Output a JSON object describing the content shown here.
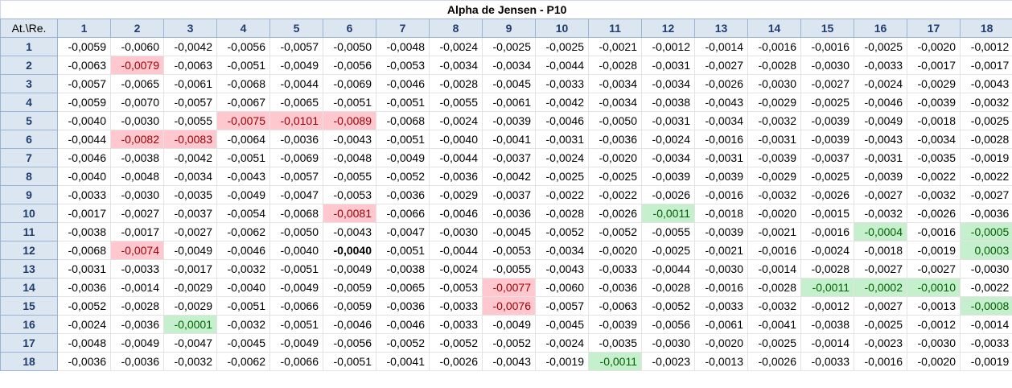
{
  "title": "Alpha de Jensen - P10",
  "corner": "At.\\Re.",
  "columns": [
    "1",
    "2",
    "3",
    "4",
    "5",
    "6",
    "7",
    "8",
    "9",
    "10",
    "11",
    "12",
    "13",
    "14",
    "15",
    "16",
    "17",
    "18"
  ],
  "rows": [
    {
      "label": "1",
      "values": [
        "-0,0059",
        "-0,0060",
        "-0,0042",
        "-0,0056",
        "-0,0057",
        "-0,0050",
        "-0,0048",
        "-0,0024",
        "-0,0025",
        "-0,0025",
        "-0,0021",
        "-0,0012",
        "-0,0014",
        "-0,0016",
        "-0,0016",
        "-0,0025",
        "-0,0020",
        "-0,0012"
      ]
    },
    {
      "label": "2",
      "values": [
        "-0,0063",
        "-0,0079",
        "-0,0063",
        "-0,0051",
        "-0,0049",
        "-0,0056",
        "-0,0053",
        "-0,0034",
        "-0,0034",
        "-0,0044",
        "-0,0028",
        "-0,0031",
        "-0,0027",
        "-0,0028",
        "-0,0030",
        "-0,0033",
        "-0,0017",
        "-0,0017"
      ]
    },
    {
      "label": "3",
      "values": [
        "-0,0057",
        "-0,0065",
        "-0,0061",
        "-0,0068",
        "-0,0044",
        "-0,0069",
        "-0,0046",
        "-0,0028",
        "-0,0045",
        "-0,0033",
        "-0,0034",
        "-0,0034",
        "-0,0026",
        "-0,0030",
        "-0,0027",
        "-0,0024",
        "-0,0029",
        "-0,0043"
      ]
    },
    {
      "label": "4",
      "values": [
        "-0,0059",
        "-0,0070",
        "-0,0057",
        "-0,0067",
        "-0,0065",
        "-0,0051",
        "-0,0051",
        "-0,0055",
        "-0,0061",
        "-0,0042",
        "-0,0034",
        "-0,0038",
        "-0,0043",
        "-0,0029",
        "-0,0025",
        "-0,0046",
        "-0,0039",
        "-0,0032"
      ]
    },
    {
      "label": "5",
      "values": [
        "-0,0040",
        "-0,0030",
        "-0,0055",
        "-0,0075",
        "-0,0101",
        "-0,0089",
        "-0,0068",
        "-0,0024",
        "-0,0039",
        "-0,0046",
        "-0,0050",
        "-0,0031",
        "-0,0034",
        "-0,0032",
        "-0,0039",
        "-0,0049",
        "-0,0018",
        "-0,0025"
      ]
    },
    {
      "label": "6",
      "values": [
        "-0,0044",
        "-0,0082",
        "-0,0083",
        "-0,0064",
        "-0,0036",
        "-0,0043",
        "-0,0051",
        "-0,0040",
        "-0,0041",
        "-0,0031",
        "-0,0036",
        "-0,0024",
        "-0,0016",
        "-0,0031",
        "-0,0039",
        "-0,0043",
        "-0,0034",
        "-0,0028"
      ]
    },
    {
      "label": "7",
      "values": [
        "-0,0046",
        "-0,0038",
        "-0,0042",
        "-0,0051",
        "-0,0069",
        "-0,0048",
        "-0,0049",
        "-0,0044",
        "-0,0037",
        "-0,0024",
        "-0,0020",
        "-0,0034",
        "-0,0031",
        "-0,0039",
        "-0,0037",
        "-0,0031",
        "-0,0035",
        "-0,0019"
      ]
    },
    {
      "label": "8",
      "values": [
        "-0,0040",
        "-0,0048",
        "-0,0034",
        "-0,0043",
        "-0,0057",
        "-0,0055",
        "-0,0052",
        "-0,0036",
        "-0,0042",
        "-0,0025",
        "-0,0025",
        "-0,0039",
        "-0,0039",
        "-0,0029",
        "-0,0025",
        "-0,0039",
        "-0,0022",
        "-0,0022"
      ]
    },
    {
      "label": "9",
      "values": [
        "-0,0033",
        "-0,0030",
        "-0,0035",
        "-0,0049",
        "-0,0047",
        "-0,0053",
        "-0,0036",
        "-0,0029",
        "-0,0037",
        "-0,0022",
        "-0,0022",
        "-0,0026",
        "-0,0016",
        "-0,0032",
        "-0,0026",
        "-0,0027",
        "-0,0032",
        "-0,0027"
      ]
    },
    {
      "label": "10",
      "values": [
        "-0,0017",
        "-0,0027",
        "-0,0037",
        "-0,0054",
        "-0,0068",
        "-0,0081",
        "-0,0066",
        "-0,0046",
        "-0,0036",
        "-0,0028",
        "-0,0026",
        "-0,0011",
        "-0,0018",
        "-0,0020",
        "-0,0015",
        "-0,0032",
        "-0,0026",
        "-0,0036"
      ]
    },
    {
      "label": "11",
      "values": [
        "-0,0038",
        "-0,0017",
        "-0,0027",
        "-0,0062",
        "-0,0050",
        "-0,0043",
        "-0,0047",
        "-0,0030",
        "-0,0045",
        "-0,0052",
        "-0,0052",
        "-0,0055",
        "-0,0039",
        "-0,0021",
        "-0,0016",
        "-0,0004",
        "-0,0016",
        "-0,0005"
      ]
    },
    {
      "label": "12",
      "values": [
        "-0,0068",
        "-0,0074",
        "-0,0049",
        "-0,0046",
        "-0,0040",
        "-0,0040",
        "-0,0051",
        "-0,0044",
        "-0,0053",
        "-0,0034",
        "-0,0020",
        "-0,0025",
        "-0,0021",
        "-0,0016",
        "-0,0024",
        "-0,0018",
        "-0,0019",
        "0,0003"
      ]
    },
    {
      "label": "13",
      "values": [
        "-0,0031",
        "-0,0033",
        "-0,0017",
        "-0,0032",
        "-0,0051",
        "-0,0049",
        "-0,0038",
        "-0,0024",
        "-0,0055",
        "-0,0043",
        "-0,0033",
        "-0,0044",
        "-0,0030",
        "-0,0014",
        "-0,0028",
        "-0,0027",
        "-0,0027",
        "-0,0030"
      ]
    },
    {
      "label": "14",
      "values": [
        "-0,0036",
        "-0,0014",
        "-0,0029",
        "-0,0040",
        "-0,0049",
        "-0,0059",
        "-0,0065",
        "-0,0053",
        "-0,0077",
        "-0,0060",
        "-0,0036",
        "-0,0028",
        "-0,0016",
        "-0,0028",
        "-0,0011",
        "-0,0002",
        "-0,0010",
        "-0,0022"
      ]
    },
    {
      "label": "15",
      "values": [
        "-0,0052",
        "-0,0028",
        "-0,0029",
        "-0,0051",
        "-0,0066",
        "-0,0059",
        "-0,0036",
        "-0,0033",
        "-0,0076",
        "-0,0057",
        "-0,0063",
        "-0,0052",
        "-0,0033",
        "-0,0032",
        "-0,0012",
        "-0,0027",
        "-0,0013",
        "-0,0008"
      ]
    },
    {
      "label": "16",
      "values": [
        "-0,0024",
        "-0,0036",
        "-0,0001",
        "-0,0032",
        "-0,0051",
        "-0,0046",
        "-0,0046",
        "-0,0033",
        "-0,0049",
        "-0,0045",
        "-0,0039",
        "-0,0056",
        "-0,0061",
        "-0,0041",
        "-0,0038",
        "-0,0025",
        "-0,0012",
        "-0,0014"
      ]
    },
    {
      "label": "17",
      "values": [
        "-0,0048",
        "-0,0049",
        "-0,0047",
        "-0,0045",
        "-0,0049",
        "-0,0056",
        "-0,0052",
        "-0,0052",
        "-0,0052",
        "-0,0024",
        "-0,0035",
        "-0,0030",
        "-0,0020",
        "-0,0025",
        "-0,0014",
        "-0,0023",
        "-0,0030",
        "-0,0033"
      ]
    },
    {
      "label": "18",
      "values": [
        "-0,0036",
        "-0,0036",
        "-0,0032",
        "-0,0062",
        "-0,0066",
        "-0,0051",
        "-0,0041",
        "-0,0026",
        "-0,0043",
        "-0,0019",
        "-0,0011",
        "-0,0023",
        "-0,0013",
        "-0,0026",
        "-0,0033",
        "-0,0016",
        "-0,0020",
        "-0,0019"
      ]
    }
  ],
  "highlights": {
    "red": [
      [
        2,
        2
      ],
      [
        5,
        4
      ],
      [
        5,
        5
      ],
      [
        5,
        6
      ],
      [
        6,
        2
      ],
      [
        6,
        3
      ],
      [
        10,
        6
      ],
      [
        12,
        2
      ],
      [
        14,
        9
      ],
      [
        15,
        9
      ]
    ],
    "green": [
      [
        10,
        12
      ],
      [
        11,
        16
      ],
      [
        11,
        18
      ],
      [
        12,
        18
      ],
      [
        14,
        15
      ],
      [
        14,
        16
      ],
      [
        14,
        17
      ],
      [
        15,
        18
      ],
      [
        16,
        3
      ],
      [
        18,
        11
      ]
    ],
    "bold": [
      [
        12,
        6
      ]
    ],
    "red_fill": "#ffc7ce",
    "red_text": "#9c0006",
    "green_fill": "#c6efce",
    "green_text": "#006100",
    "header_fill": "#dce6f1"
  }
}
